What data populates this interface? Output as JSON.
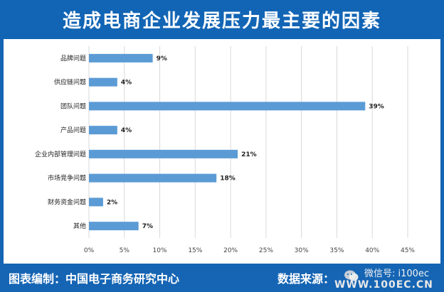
{
  "header": {
    "title": "造成电商企业发展压力最主要的因素"
  },
  "footer": {
    "credit": "图表编制：中国电子商务研究中心",
    "source": "数据来源：",
    "watermark_top": "微信号: i100ec",
    "watermark_bottom": "WWW.100EC.CN"
  },
  "colors": {
    "brand": "#1565b4",
    "bar": "#5b9bd5",
    "grid": "#d9d9d9"
  },
  "chart_data": {
    "type": "bar",
    "orientation": "horizontal",
    "title": "造成电商企业发展压力最主要的因素",
    "categories": [
      "品牌问题",
      "供应链问题",
      "团队问题",
      "产品问题",
      "企业内部管理问题",
      "市场竞争问题",
      "财务资金问题",
      "其他"
    ],
    "values": [
      9,
      4,
      39,
      4,
      21,
      18,
      2,
      7
    ],
    "value_labels": [
      "9%",
      "4%",
      "39%",
      "4%",
      "21%",
      "18%",
      "2%",
      "7%"
    ],
    "xlim": [
      0,
      45
    ],
    "xticks": [
      "0%",
      "5%",
      "10%",
      "15%",
      "20%",
      "25%",
      "30%",
      "35%",
      "40%",
      "45%"
    ],
    "grid": true,
    "legend": "none"
  }
}
